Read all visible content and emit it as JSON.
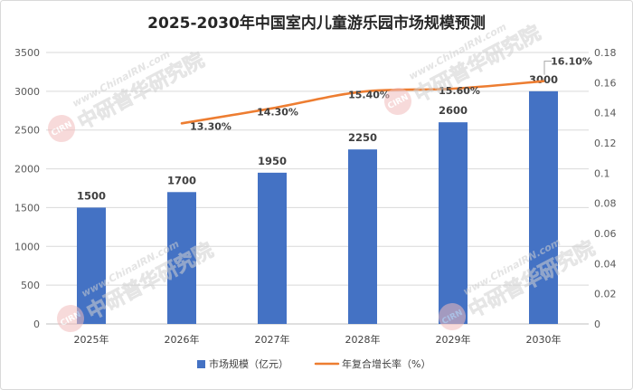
{
  "chart_data": {
    "type": "bar",
    "title": "2025-2030年中国室内儿童游乐园市场规模预测",
    "categories": [
      "2025年",
      "2026年",
      "2027年",
      "2028年",
      "2029年",
      "2030年"
    ],
    "series": [
      {
        "name": "市场规模（亿元）",
        "type": "bar",
        "axis": "left",
        "color": "#4472C4",
        "values": [
          1500,
          1700,
          1950,
          2250,
          2600,
          3000
        ]
      },
      {
        "name": "年复合增长率（%）",
        "type": "line",
        "axis": "right",
        "color": "#ED7D31",
        "smooth": true,
        "values": [
          null,
          0.133,
          0.143,
          0.154,
          0.156,
          0.161
        ],
        "labels": [
          null,
          "13.30%",
          "14.30%",
          "15.40%",
          "15.60%",
          "16.10%"
        ]
      }
    ],
    "ylim": [
      0,
      3500
    ],
    "y_ticks": [
      "0",
      "500",
      "1000",
      "1500",
      "2000",
      "2500",
      "3000",
      "3500"
    ],
    "y2lim": [
      0,
      0.18
    ],
    "y2_ticks": [
      "0",
      "0.02",
      "0.04",
      "0.06",
      "0.08",
      "0.1",
      "0.12",
      "0.14",
      "0.16",
      "0.18"
    ],
    "grid": true,
    "legend": "bottom"
  },
  "watermark": {
    "logo": "CIRN",
    "url": "www.ChinaIRN.com",
    "name": "中研普华研究院"
  }
}
